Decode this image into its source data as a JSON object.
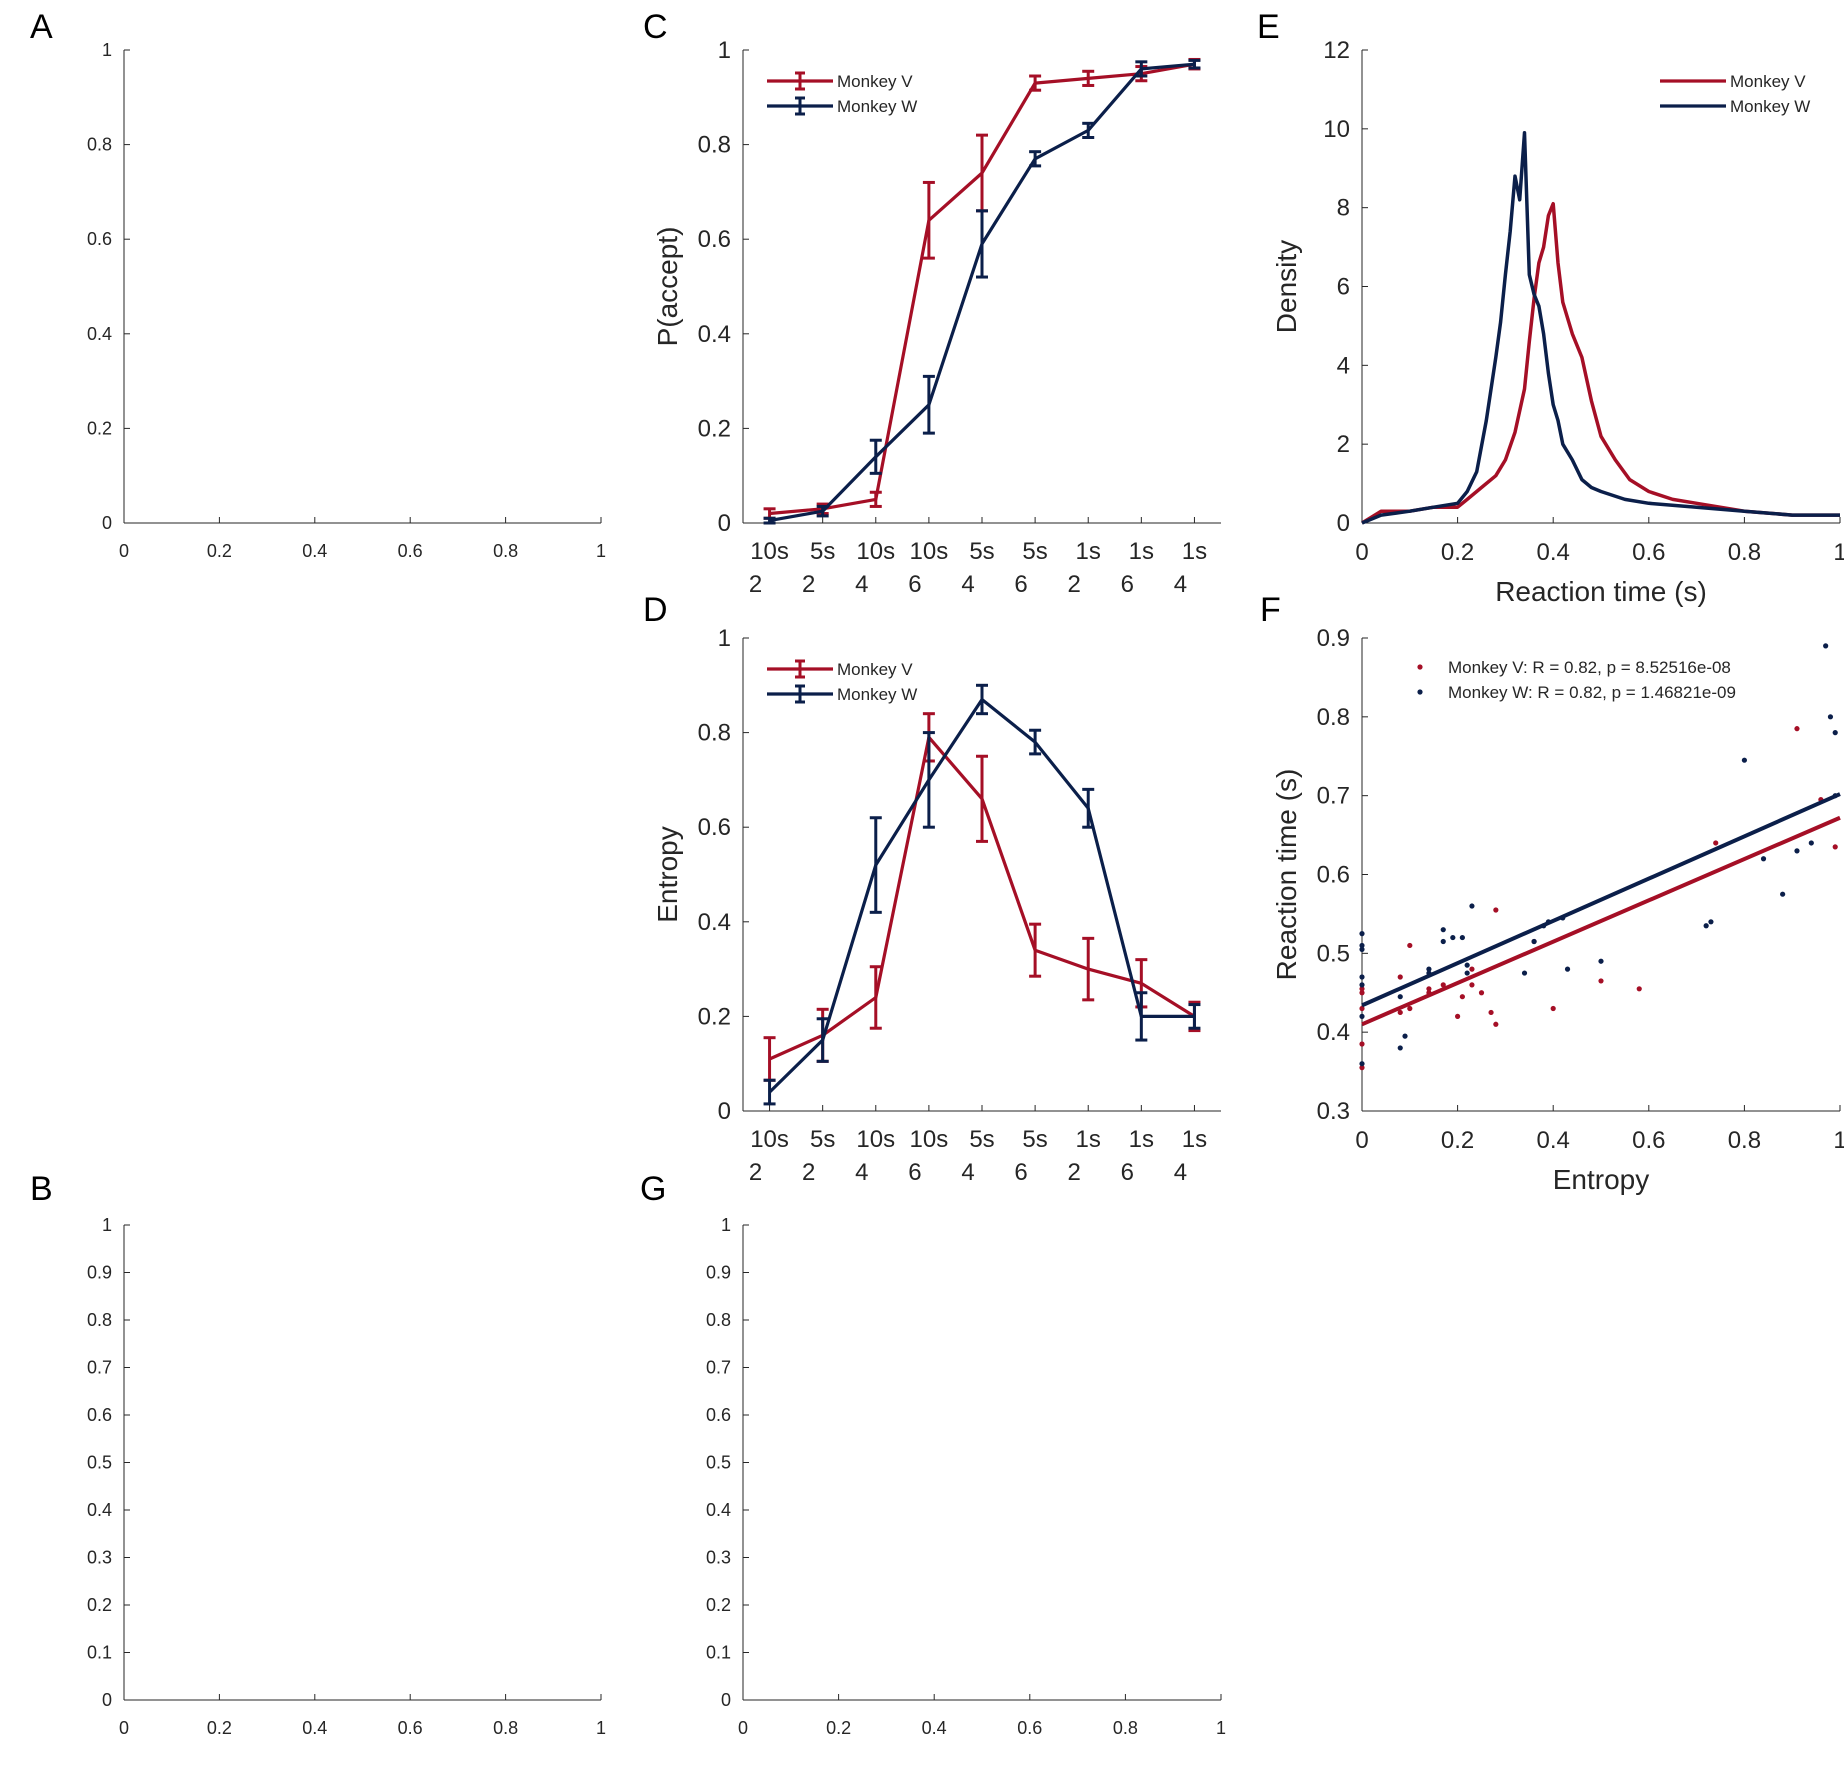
{
  "colors": {
    "monkey_v": "#a50f26",
    "monkey_w": "#0b1f4a",
    "axis": "#262626"
  },
  "panels": {
    "A": {
      "letter": "A"
    },
    "B": {
      "letter": "B"
    },
    "C": {
      "letter": "C"
    },
    "D": {
      "letter": "D"
    },
    "E": {
      "letter": "E"
    },
    "F": {
      "letter": "F"
    },
    "G": {
      "letter": "G"
    }
  },
  "chart_data": [
    {
      "panel": "A",
      "type": "line",
      "title": "",
      "xlabel": "",
      "ylabel": "",
      "xlim": [
        0,
        1
      ],
      "ylim": [
        0,
        1
      ],
      "xticks": [
        "0",
        "0.2",
        "0.4",
        "0.6",
        "0.8",
        "1"
      ],
      "yticks": [
        "0",
        "0.2",
        "0.4",
        "0.6",
        "0.8",
        "1"
      ],
      "series": []
    },
    {
      "panel": "C",
      "type": "line",
      "title": "",
      "xlabel": "",
      "ylabel": "P(accept)",
      "ylim": [
        0,
        1
      ],
      "yticks": [
        "0",
        "0.2",
        "0.4",
        "0.6",
        "0.8",
        "1"
      ],
      "categories": [
        [
          "10s",
          "2"
        ],
        [
          "5s",
          "2"
        ],
        [
          "10s",
          "4"
        ],
        [
          "10s",
          "6"
        ],
        [
          "5s",
          "4"
        ],
        [
          "5s",
          "6"
        ],
        [
          "1s",
          "2"
        ],
        [
          "1s",
          "6"
        ],
        [
          "1s",
          "4"
        ]
      ],
      "legend": "top-left",
      "series": [
        {
          "name": "Monkey V",
          "values": [
            0.02,
            0.03,
            0.05,
            0.64,
            0.74,
            0.93,
            0.94,
            0.95,
            0.97
          ],
          "errors": [
            0.01,
            0.01,
            0.015,
            0.08,
            0.08,
            0.015,
            0.015,
            0.015,
            0.01
          ]
        },
        {
          "name": "Monkey W",
          "values": [
            0.005,
            0.025,
            0.14,
            0.25,
            0.59,
            0.77,
            0.83,
            0.96,
            0.97
          ],
          "errors": [
            0.005,
            0.01,
            0.035,
            0.06,
            0.07,
            0.015,
            0.015,
            0.015,
            0.008
          ]
        }
      ]
    },
    {
      "panel": "D",
      "type": "line",
      "title": "",
      "xlabel": "",
      "ylabel": "Entropy",
      "ylim": [
        0,
        1
      ],
      "yticks": [
        "0",
        "0.2",
        "0.4",
        "0.6",
        "0.8",
        "1"
      ],
      "categories": [
        [
          "10s",
          "2"
        ],
        [
          "5s",
          "2"
        ],
        [
          "10s",
          "4"
        ],
        [
          "10s",
          "6"
        ],
        [
          "5s",
          "4"
        ],
        [
          "5s",
          "6"
        ],
        [
          "1s",
          "2"
        ],
        [
          "1s",
          "6"
        ],
        [
          "1s",
          "4"
        ]
      ],
      "legend": "top-left",
      "series": [
        {
          "name": "Monkey V",
          "values": [
            0.11,
            0.16,
            0.24,
            0.79,
            0.66,
            0.34,
            0.3,
            0.27,
            0.2
          ],
          "errors": [
            0.045,
            0.055,
            0.065,
            0.05,
            0.09,
            0.055,
            0.065,
            0.05,
            0.03
          ]
        },
        {
          "name": "Monkey W",
          "values": [
            0.04,
            0.15,
            0.52,
            0.7,
            0.87,
            0.78,
            0.64,
            0.2,
            0.2
          ],
          "errors": [
            0.025,
            0.045,
            0.1,
            0.1,
            0.03,
            0.025,
            0.04,
            0.05,
            0.025
          ]
        }
      ]
    },
    {
      "panel": "E",
      "type": "line",
      "title": "",
      "xlabel": "Reaction time (s)",
      "ylabel": "Density",
      "xlim": [
        0,
        1
      ],
      "ylim": [
        0,
        12
      ],
      "xticks": [
        "0",
        "0.2",
        "0.4",
        "0.6",
        "0.8",
        "1"
      ],
      "yticks": [
        "0",
        "2",
        "4",
        "6",
        "8",
        "10",
        "12"
      ],
      "legend": "top-right",
      "series": [
        {
          "name": "Monkey V",
          "x": [
            0,
            0.04,
            0.1,
            0.15,
            0.2,
            0.22,
            0.25,
            0.28,
            0.3,
            0.32,
            0.34,
            0.35,
            0.36,
            0.37,
            0.38,
            0.39,
            0.4,
            0.41,
            0.42,
            0.44,
            0.46,
            0.48,
            0.5,
            0.53,
            0.56,
            0.6,
            0.65,
            0.7,
            0.8,
            0.9,
            1.0
          ],
          "values": [
            0,
            0.3,
            0.3,
            0.4,
            0.4,
            0.6,
            0.9,
            1.2,
            1.6,
            2.3,
            3.4,
            4.6,
            5.7,
            6.6,
            7.0,
            7.8,
            8.1,
            6.6,
            5.6,
            4.8,
            4.2,
            3.1,
            2.2,
            1.6,
            1.1,
            0.8,
            0.6,
            0.5,
            0.3,
            0.2,
            0.2
          ]
        },
        {
          "name": "Monkey W",
          "x": [
            0,
            0.04,
            0.1,
            0.15,
            0.2,
            0.22,
            0.24,
            0.26,
            0.28,
            0.29,
            0.3,
            0.31,
            0.32,
            0.33,
            0.34,
            0.35,
            0.36,
            0.37,
            0.38,
            0.39,
            0.4,
            0.41,
            0.42,
            0.44,
            0.46,
            0.48,
            0.5,
            0.55,
            0.6,
            0.7,
            0.8,
            0.9,
            1.0
          ],
          "values": [
            0,
            0.2,
            0.3,
            0.4,
            0.5,
            0.8,
            1.3,
            2.6,
            4.2,
            5.1,
            6.3,
            7.4,
            8.8,
            8.2,
            9.9,
            6.3,
            5.8,
            5.5,
            4.8,
            3.8,
            3.0,
            2.6,
            2.0,
            1.6,
            1.1,
            0.9,
            0.8,
            0.6,
            0.5,
            0.4,
            0.3,
            0.2,
            0.2
          ]
        }
      ]
    },
    {
      "panel": "F",
      "type": "scatter",
      "title": "",
      "xlabel": "Entropy",
      "ylabel": "Reaction time (s)",
      "xlim": [
        0,
        1
      ],
      "ylim": [
        0.3,
        0.9
      ],
      "xticks": [
        "0",
        "0.2",
        "0.4",
        "0.6",
        "0.8",
        "1"
      ],
      "yticks": [
        "0.3",
        "0.4",
        "0.5",
        "0.6",
        "0.7",
        "0.8",
        "0.9"
      ],
      "legend": "top",
      "series": [
        {
          "name": "Monkey V: R = 0.82, p = 8.52516e-08",
          "fit": [
            [
              0,
              0.41
            ],
            [
              1,
              0.672
            ]
          ],
          "x": [
            0,
            0,
            0,
            0,
            0,
            0.08,
            0.08,
            0.1,
            0.1,
            0.14,
            0.14,
            0.17,
            0.2,
            0.21,
            0.23,
            0.23,
            0.25,
            0.27,
            0.28,
            0.28,
            0.36,
            0.4,
            0.5,
            0.58,
            0.74,
            0.91,
            0.96,
            0.99
          ],
          "y": [
            0.355,
            0.385,
            0.43,
            0.45,
            0.455,
            0.47,
            0.425,
            0.43,
            0.51,
            0.45,
            0.455,
            0.46,
            0.42,
            0.445,
            0.48,
            0.46,
            0.45,
            0.425,
            0.41,
            0.555,
            0.515,
            0.43,
            0.465,
            0.455,
            0.64,
            0.785,
            0.695,
            0.635
          ]
        },
        {
          "name": "Monkey W: R = 0.82, p = 1.46821e-09",
          "x": [
            0,
            0,
            0,
            0,
            0,
            0,
            0,
            0.08,
            0.08,
            0.09,
            0.14,
            0.14,
            0.17,
            0.17,
            0.19,
            0.21,
            0.22,
            0.22,
            0.23,
            0.34,
            0.36,
            0.38,
            0.39,
            0.42,
            0.43,
            0.5,
            0.72,
            0.73,
            0.8,
            0.84,
            0.88,
            0.91,
            0.94,
            0.97,
            0.98,
            0.99,
            0.99
          ],
          "y": [
            0.36,
            0.42,
            0.46,
            0.47,
            0.505,
            0.51,
            0.525,
            0.38,
            0.445,
            0.395,
            0.475,
            0.48,
            0.515,
            0.53,
            0.52,
            0.52,
            0.475,
            0.485,
            0.56,
            0.475,
            0.515,
            0.535,
            0.54,
            0.545,
            0.48,
            0.49,
            0.535,
            0.54,
            0.745,
            0.62,
            0.575,
            0.63,
            0.64,
            0.89,
            0.8,
            0.78,
            0.7
          ],
          "fit": [
            [
              0,
              0.434
            ],
            [
              1,
              0.702
            ]
          ]
        }
      ]
    },
    {
      "panel": "B",
      "type": "line",
      "title": "",
      "xlabel": "",
      "ylabel": "",
      "xlim": [
        0,
        1
      ],
      "ylim": [
        0,
        1
      ],
      "xticks": [
        "0",
        "0.2",
        "0.4",
        "0.6",
        "0.8",
        "1"
      ],
      "yticks": [
        "0",
        "0.1",
        "0.2",
        "0.3",
        "0.4",
        "0.5",
        "0.6",
        "0.7",
        "0.8",
        "0.9",
        "1"
      ],
      "series": []
    },
    {
      "panel": "G",
      "type": "line",
      "title": "",
      "xlabel": "",
      "ylabel": "",
      "xlim": [
        0,
        1
      ],
      "ylim": [
        0,
        1
      ],
      "xticks": [
        "0",
        "0.2",
        "0.4",
        "0.6",
        "0.8",
        "1"
      ],
      "yticks": [
        "0",
        "0.1",
        "0.2",
        "0.3",
        "0.4",
        "0.5",
        "0.6",
        "0.7",
        "0.8",
        "0.9",
        "1"
      ],
      "series": []
    }
  ]
}
